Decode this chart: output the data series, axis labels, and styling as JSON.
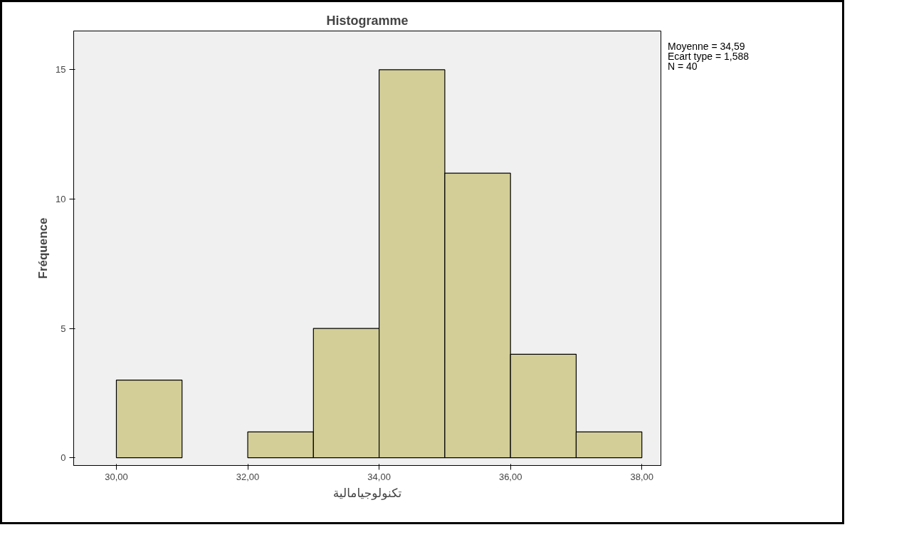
{
  "chart_data": {
    "type": "histogram",
    "title": "Histogramme",
    "xlabel": "تكنولوجيامالية",
    "ylabel": "Fréquence",
    "bins": [
      30,
      31,
      32,
      33,
      34,
      35,
      36,
      37,
      38
    ],
    "values": [
      3,
      0,
      1,
      5,
      15,
      11,
      4,
      1
    ],
    "color": "#d3ce97",
    "xlim": [
      29.35,
      38.29
    ],
    "ylim": [
      -0.3,
      16.5
    ],
    "xticks": [
      {
        "value": 30,
        "label": "30,00"
      },
      {
        "value": 32,
        "label": "32,00"
      },
      {
        "value": 34,
        "label": "34,00"
      },
      {
        "value": 36,
        "label": "36,00"
      },
      {
        "value": 38,
        "label": "38,00"
      }
    ],
    "yticks": [
      0,
      5,
      10,
      15
    ],
    "grid": false,
    "annotations": [
      "Moyenne = 34,59",
      "Ecart type = 1,588",
      "N = 40"
    ]
  }
}
